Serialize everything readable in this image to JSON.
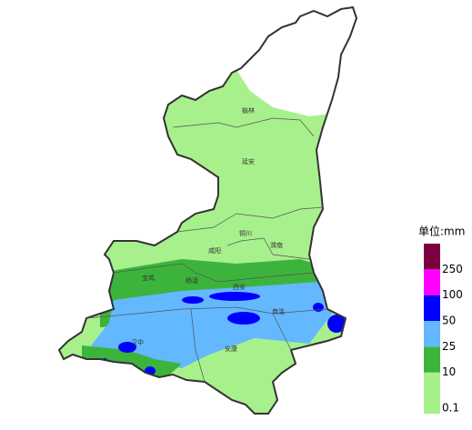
{
  "map": {
    "cities": [
      {
        "name": "榆林"
      },
      {
        "name": "延安"
      },
      {
        "name": "铜川"
      },
      {
        "name": "渭南"
      },
      {
        "name": "咸阳"
      },
      {
        "name": "宝鸡"
      },
      {
        "name": "杨凌"
      },
      {
        "name": "西安"
      },
      {
        "name": "商洛"
      },
      {
        "name": "汉中"
      },
      {
        "name": "安康"
      }
    ]
  },
  "legend": {
    "unit": "单位:mm",
    "levels": [
      {
        "label": 0.1,
        "color": "#a8f08c"
      },
      {
        "label": 10,
        "color": "#3cb43c"
      },
      {
        "label": 25,
        "color": "#63b8ff"
      },
      {
        "label": 50,
        "color": "#0000ff"
      },
      {
        "label": 100,
        "color": "#ff00ff"
      },
      {
        "label": 250,
        "color": "#7a0040"
      }
    ]
  }
}
